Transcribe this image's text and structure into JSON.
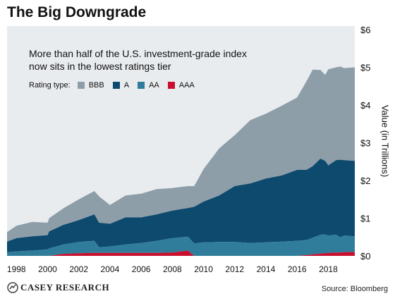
{
  "title": "The Big Downgrade",
  "subtitle_line1": "More than half of the U.S. investment-grade index",
  "subtitle_line2": "now sits in the lowest ratings tier",
  "legend": {
    "label": "Rating type:",
    "items": [
      {
        "name": "BBB",
        "color": "#8e9ea9"
      },
      {
        "name": "A",
        "color": "#0e4a6e"
      },
      {
        "name": "AA",
        "color": "#2f7d9b"
      },
      {
        "name": "AAA",
        "color": "#c8102e"
      }
    ]
  },
  "source": "Source: Bloomberg",
  "logo_text": "CASEY RESEARCH",
  "chart_data": {
    "type": "area",
    "stacked": true,
    "ylabel": "Value (in Trillions)",
    "ylim": [
      0,
      6
    ],
    "xlim": [
      1997.4,
      2019.7
    ],
    "yticks": [
      "$0",
      "$1",
      "$2",
      "$3",
      "$4",
      "$5",
      "$6"
    ],
    "xticks": [
      "1998",
      "2000",
      "2002",
      "2004",
      "2006",
      "2008",
      "2010",
      "2012",
      "2014",
      "2016",
      "2018"
    ],
    "legend_position": "top-left",
    "x": [
      1997.4,
      1998.0,
      1999.0,
      2000.0,
      2000.1,
      2001.0,
      2002.0,
      2003.0,
      2003.3,
      2004.0,
      2005.0,
      2006.0,
      2007.0,
      2008.0,
      2009.0,
      2009.4,
      2010.0,
      2011.0,
      2012.0,
      2013.0,
      2014.0,
      2015.0,
      2016.0,
      2016.6,
      2017.0,
      2017.5,
      2017.8,
      2018.0,
      2018.5,
      2018.8,
      2019.0,
      2019.7
    ],
    "series": [
      {
        "name": "AAA",
        "values": [
          0.0,
          0.0,
          0.0,
          0.0,
          0.0,
          0.05,
          0.07,
          0.08,
          0.08,
          0.08,
          0.08,
          0.08,
          0.08,
          0.09,
          0.14,
          0.0,
          0.0,
          0.0,
          0.0,
          0.0,
          0.0,
          0.0,
          0.0,
          0.02,
          0.04,
          0.06,
          0.07,
          0.08,
          0.09,
          0.09,
          0.1,
          0.1
        ]
      },
      {
        "name": "AA",
        "values": [
          0.1,
          0.12,
          0.14,
          0.17,
          0.2,
          0.25,
          0.3,
          0.32,
          0.15,
          0.17,
          0.22,
          0.26,
          0.32,
          0.38,
          0.37,
          0.33,
          0.36,
          0.37,
          0.37,
          0.34,
          0.36,
          0.38,
          0.4,
          0.4,
          0.44,
          0.5,
          0.5,
          0.46,
          0.47,
          0.4,
          0.44,
          0.42
        ]
      },
      {
        "name": "A",
        "values": [
          0.28,
          0.35,
          0.38,
          0.38,
          0.45,
          0.52,
          0.58,
          0.7,
          0.65,
          0.6,
          0.72,
          0.68,
          0.7,
          0.73,
          0.76,
          0.97,
          1.08,
          1.23,
          1.48,
          1.58,
          1.69,
          1.75,
          1.88,
          1.86,
          1.9,
          2.02,
          1.95,
          1.86,
          1.98,
          2.06,
          2.0,
          2.0
        ]
      },
      {
        "name": "BBB",
        "values": [
          0.25,
          0.33,
          0.38,
          0.33,
          0.35,
          0.44,
          0.55,
          0.62,
          0.7,
          0.5,
          0.58,
          0.63,
          0.67,
          0.6,
          0.58,
          0.55,
          0.86,
          1.25,
          1.35,
          1.68,
          1.72,
          1.85,
          1.92,
          2.35,
          2.56,
          2.35,
          2.28,
          2.55,
          2.46,
          2.47,
          2.44,
          2.48
        ]
      }
    ]
  }
}
